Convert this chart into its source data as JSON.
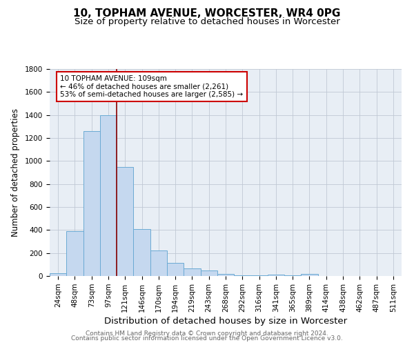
{
  "title1": "10, TOPHAM AVENUE, WORCESTER, WR4 0PG",
  "title2": "Size of property relative to detached houses in Worcester",
  "xlabel": "Distribution of detached houses by size in Worcester",
  "ylabel": "Number of detached properties",
  "footer1": "Contains HM Land Registry data © Crown copyright and database right 2024.",
  "footer2": "Contains public sector information licensed under the Open Government Licence v3.0.",
  "annotation_line1": "10 TOPHAM AVENUE: 109sqm",
  "annotation_line2": "← 46% of detached houses are smaller (2,261)",
  "annotation_line3": "53% of semi-detached houses are larger (2,585) →",
  "categories": [
    "24sqm",
    "48sqm",
    "73sqm",
    "97sqm",
    "121sqm",
    "146sqm",
    "170sqm",
    "194sqm",
    "219sqm",
    "243sqm",
    "268sqm",
    "292sqm",
    "316sqm",
    "341sqm",
    "365sqm",
    "389sqm",
    "414sqm",
    "438sqm",
    "462sqm",
    "487sqm",
    "511sqm"
  ],
  "values": [
    25,
    390,
    1260,
    1400,
    950,
    410,
    225,
    115,
    65,
    50,
    20,
    5,
    5,
    15,
    5,
    20,
    0,
    0,
    0,
    0,
    0
  ],
  "bar_color": "#c5d8ef",
  "bar_edge_color": "#6aaad4",
  "vline_color": "#8b0000",
  "annotation_box_color": "#ffffff",
  "annotation_box_edge": "#cc0000",
  "background_color": "#e8eef5",
  "ylim": [
    0,
    1800
  ],
  "yticks": [
    0,
    200,
    400,
    600,
    800,
    1000,
    1200,
    1400,
    1600,
    1800
  ],
  "title1_fontsize": 11,
  "title2_fontsize": 9.5,
  "xlabel_fontsize": 9.5,
  "ylabel_fontsize": 8.5,
  "tick_fontsize": 7.5,
  "annotation_fontsize": 7.5,
  "footer_fontsize": 6.5
}
